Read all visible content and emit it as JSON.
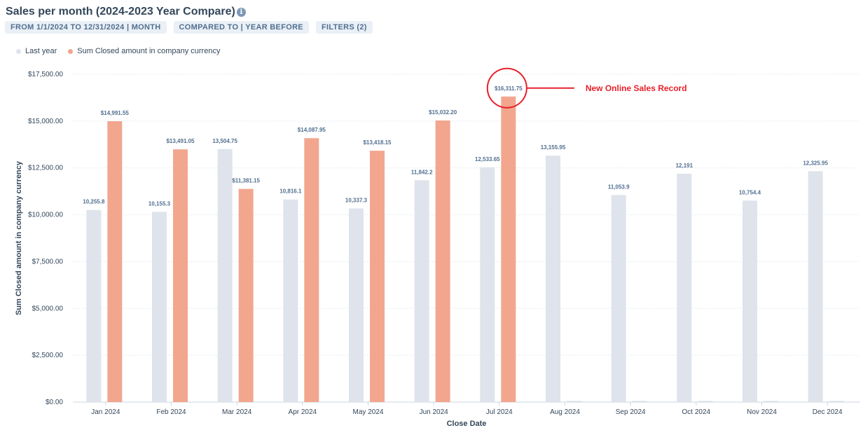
{
  "header": {
    "title": "Sales per month (2024-2023 Year Compare)",
    "info_icon": "info-icon",
    "chips": [
      "FROM 1/1/2024 TO 12/31/2024 | MONTH",
      "COMPARED TO | YEAR BEFORE",
      "FILTERS (2)"
    ]
  },
  "legend": [
    {
      "label": "Last year",
      "color": "#dfe3eb"
    },
    {
      "label": "Sum Closed amount in company currency",
      "color": "#f2a68e"
    }
  ],
  "chart_data": {
    "type": "bar",
    "xlabel": "Close Date",
    "ylabel": "Sum Closed amount in company currency",
    "ylim": [
      0,
      17500
    ],
    "grid": true,
    "legend_position": "top-left",
    "yticks": [
      {
        "value": 0,
        "label": "$0.00"
      },
      {
        "value": 2500,
        "label": "$2,500.00"
      },
      {
        "value": 5000,
        "label": "$5,000.00"
      },
      {
        "value": 7500,
        "label": "$7,500.00"
      },
      {
        "value": 10000,
        "label": "$10,000.00"
      },
      {
        "value": 12500,
        "label": "$12,500.00"
      },
      {
        "value": 15000,
        "label": "$15,000.00"
      },
      {
        "value": 17500,
        "label": "$17,500.00"
      }
    ],
    "categories": [
      "Jan 2024",
      "Feb 2024",
      "Mar 2024",
      "Apr 2024",
      "May 2024",
      "Jun 2024",
      "Jul 2024",
      "Aug 2024",
      "Sep 2024",
      "Oct 2024",
      "Nov 2024",
      "Dec 2024"
    ],
    "series": [
      {
        "name": "Last year",
        "color": "#dfe3eb",
        "values": [
          10255.8,
          10155.3,
          13504.75,
          10816.1,
          10337.3,
          11842.2,
          12533.65,
          13155.95,
          11053.9,
          12191,
          10754.4,
          12325.95
        ],
        "labels": [
          "10,255.8",
          "10,155.3",
          "13,504.75",
          "10,816.1",
          "10,337.3",
          "11,842.2",
          "12,533.65",
          "13,155.95",
          "11,053.9",
          "12,191",
          "10,754.4",
          "12,325.95"
        ]
      },
      {
        "name": "Sum Closed amount in company currency",
        "color": "#f2a68e",
        "values": [
          14991.55,
          13491.05,
          11381.15,
          14087.95,
          13418.15,
          15032.2,
          16311.75,
          0,
          0,
          0,
          0,
          0
        ],
        "labels": [
          "$14,991.55",
          "$13,491.05",
          "$11,381.15",
          "$14,087.95",
          "$13,418.15",
          "$15,032.20",
          "$16,311.75",
          "",
          "",
          "",
          "",
          ""
        ]
      }
    ],
    "annotations": [
      {
        "category": "Jul 2024",
        "text": "New Online Sales Record",
        "color": "#e8202a"
      }
    ]
  }
}
